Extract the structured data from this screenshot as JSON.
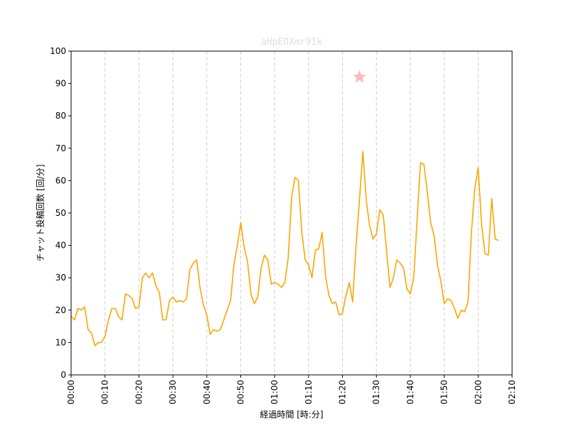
{
  "chart_data": {
    "type": "line",
    "title": "aHpEOXmr91k",
    "title_color": "#dddddd",
    "xlabel": "経過時間 [時:分]",
    "ylabel": "チャット投稿回数 [回/分]",
    "xlim": [
      0,
      130
    ],
    "ylim": [
      0,
      100
    ],
    "y_ticks": [
      0,
      10,
      20,
      30,
      40,
      50,
      60,
      70,
      80,
      90,
      100
    ],
    "x_ticks": [
      0,
      10,
      20,
      30,
      40,
      50,
      60,
      70,
      80,
      90,
      100,
      110,
      120,
      130
    ],
    "x_tick_labels": [
      "00:00",
      "00:10",
      "00:20",
      "00:30",
      "00:40",
      "00:50",
      "01:00",
      "01:10",
      "01:20",
      "01:30",
      "01:40",
      "01:50",
      "02:00",
      "02:10"
    ],
    "vertical_grid": true,
    "grid_style": "dashed",
    "line_color": "#FFA500",
    "series": [
      {
        "x": [
          0,
          1,
          2,
          3,
          4,
          5,
          6,
          7,
          8,
          9,
          10,
          11,
          12,
          13,
          14,
          15,
          16,
          17,
          18,
          19,
          20,
          21,
          22,
          23,
          24,
          25,
          26,
          27,
          28,
          29,
          30,
          31,
          32,
          33,
          34,
          35,
          36,
          37,
          38,
          39,
          40,
          41,
          42,
          43,
          44,
          45,
          46,
          47,
          48,
          49,
          50,
          51,
          52,
          53,
          54,
          55,
          56,
          57,
          58,
          59,
          60,
          61,
          62,
          63,
          64,
          65,
          66,
          67,
          68,
          69,
          70,
          71,
          72,
          73,
          74,
          75,
          76,
          77,
          78,
          79,
          80,
          81,
          82,
          83,
          84,
          85,
          86,
          87,
          88,
          89,
          90,
          91,
          92,
          93,
          94,
          95,
          96,
          97,
          98,
          99,
          100,
          101,
          102,
          103,
          104,
          105,
          106,
          107,
          108,
          109,
          110,
          111,
          112,
          113,
          114,
          115,
          116,
          117,
          118,
          119,
          120,
          121,
          122,
          123,
          124,
          125,
          126
        ],
        "y": [
          18,
          17,
          20.5,
          20,
          21,
          14,
          13,
          9,
          10,
          10,
          12,
          17,
          20.5,
          20.5,
          18,
          17,
          25,
          24.5,
          23.5,
          20.5,
          21,
          30,
          31.5,
          30,
          31.5,
          27.5,
          25.5,
          17,
          17,
          23,
          24,
          22.5,
          23,
          22.5,
          23.5,
          32.5,
          34.5,
          35.5,
          27,
          21.5,
          18.5,
          12.5,
          14,
          13.5,
          14,
          17,
          20,
          23,
          34,
          40,
          47,
          39.5,
          35,
          25,
          22,
          24,
          33,
          37,
          35.5,
          28,
          28.5,
          28,
          27,
          28.5,
          36,
          55,
          61,
          60,
          44,
          35.5,
          34,
          30,
          38.5,
          39,
          44,
          30.5,
          24.5,
          22,
          22.5,
          18.5,
          19,
          24.5,
          28.5,
          22.5,
          40,
          54,
          69,
          54,
          46,
          42,
          43.5,
          51,
          49.5,
          38.5,
          27,
          30,
          35.5,
          34.5,
          33,
          26.5,
          25,
          30,
          48,
          65.5,
          65,
          56.5,
          47,
          43,
          34,
          29,
          22,
          23.5,
          23,
          20.5,
          17.5,
          20,
          19.5,
          22.5,
          44,
          57.5,
          64,
          46.5,
          37.5,
          37,
          54.5,
          42,
          41.5
        ]
      }
    ],
    "marker": {
      "type": "star",
      "x": 85,
      "y": 92,
      "color": "#FFB6C1"
    }
  }
}
